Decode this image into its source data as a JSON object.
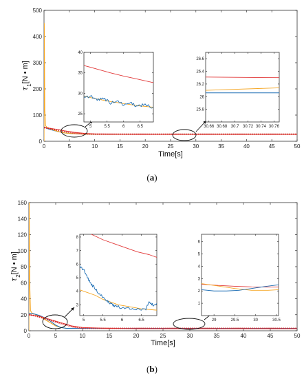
{
  "colors": {
    "blue": "#1f6fb5",
    "orange": "#f5a623",
    "red": "#e23a3a",
    "red_dotted": "#d42020",
    "axis": "#333333"
  },
  "chart_data": [
    {
      "id": "a",
      "type": "line",
      "panel_label": "(a)",
      "panel_letter": "a",
      "xlabel": "Time[s]",
      "ylabel_sym": "τ",
      "ylabel_sub": "1",
      "ylabel_unit": "[N • m]",
      "xlim": [
        0,
        50
      ],
      "ylim": [
        0,
        500
      ],
      "xticks": [
        0,
        5,
        10,
        15,
        20,
        25,
        30,
        35,
        40,
        45,
        50
      ],
      "yticks": [
        0,
        100,
        200,
        300,
        400,
        500
      ],
      "series": [
        {
          "color": "blue",
          "style": "solid",
          "x": [
            0,
            0.5,
            1,
            2,
            3,
            4,
            5,
            6,
            7,
            8,
            10,
            15,
            20,
            25,
            30,
            35,
            40,
            45,
            50
          ],
          "y": [
            55,
            50,
            46,
            41,
            36,
            32,
            30,
            29,
            28,
            27,
            27,
            27,
            27,
            27,
            27,
            27,
            27,
            27,
            27
          ]
        },
        {
          "color": "orange",
          "style": "solid",
          "x": [
            0,
            0.05,
            0.15,
            0.3,
            0.6,
            1,
            2,
            3,
            4,
            5,
            6,
            7,
            8,
            10,
            15,
            20,
            25,
            30,
            35,
            40,
            45,
            50
          ],
          "y": [
            0,
            450,
            120,
            60,
            53,
            49,
            42,
            36,
            32,
            30,
            29,
            28,
            27,
            27,
            27,
            27,
            27,
            27,
            27,
            27,
            27,
            27
          ]
        },
        {
          "color": "red",
          "style": "solid",
          "x": [
            0,
            1,
            2,
            3,
            4,
            5,
            6,
            7,
            8,
            10,
            15,
            20,
            25,
            30,
            35,
            40,
            45,
            50
          ],
          "y": [
            52,
            50,
            47,
            44,
            40,
            37,
            34,
            32,
            30,
            28,
            27,
            26.5,
            26.3,
            26.3,
            26.3,
            26.3,
            26.3,
            26.3
          ]
        },
        {
          "color": "red_dotted",
          "style": "dotted",
          "x": [
            0,
            1,
            2,
            3,
            4,
            5,
            6,
            7,
            8,
            10,
            15,
            20,
            25,
            30,
            35,
            40,
            45,
            50
          ],
          "y": [
            52,
            49,
            45,
            41,
            37,
            34,
            31,
            29,
            28,
            27,
            27,
            27,
            27,
            27,
            27,
            27,
            27,
            27
          ]
        }
      ],
      "insets": [
        {
          "xlim": [
            4.8,
            6.9
          ],
          "ylim": [
            23,
            40
          ],
          "xticks": [
            5,
            5.5,
            6,
            6.5
          ],
          "yticks": [
            25,
            30,
            35,
            40
          ],
          "series": [
            {
              "color": "red",
              "style": "solid",
              "x": [
                4.8,
                5.2,
                5.6,
                6.0,
                6.4,
                6.9
              ],
              "y": [
                36.8,
                35.9,
                35.0,
                34.2,
                33.5,
                32.6
              ]
            },
            {
              "color": "orange",
              "style": "solid",
              "x": [
                4.8,
                5.2,
                5.6,
                6.0,
                6.4,
                6.9
              ],
              "y": [
                29.3,
                28.6,
                28.0,
                27.5,
                27.0,
                26.6
              ]
            },
            {
              "color": "blue",
              "style": "solid",
              "noisy": true,
              "x": [
                4.8,
                5.0,
                5.2,
                5.4,
                5.6,
                5.8,
                6.0,
                6.2,
                6.4,
                6.6,
                6.9
              ],
              "y": [
                29.0,
                29.3,
                28.4,
                28.8,
                27.6,
                28.2,
                27.2,
                27.8,
                26.8,
                27.2,
                26.6
              ]
            }
          ]
        },
        {
          "xlim": [
            30.655,
            30.768
          ],
          "ylim": [
            25.6,
            26.7
          ],
          "xticks": [
            30.66,
            30.68,
            30.7,
            30.72,
            30.74,
            30.76
          ],
          "yticks": [
            25.8,
            26,
            26.2,
            26.4,
            26.6
          ],
          "series": [
            {
              "color": "red",
              "style": "solid",
              "x": [
                30.655,
                30.768
              ],
              "y": [
                26.31,
                26.3
              ]
            },
            {
              "color": "orange",
              "style": "solid",
              "x": [
                30.655,
                30.768
              ],
              "y": [
                26.1,
                26.14
              ]
            },
            {
              "color": "blue",
              "style": "solid",
              "x": [
                30.655,
                30.768
              ],
              "y": [
                26.06,
                26.06
              ]
            }
          ]
        }
      ]
    },
    {
      "id": "b",
      "type": "line",
      "panel_label": "(b)",
      "panel_letter": "b",
      "xlabel": "Time[s]",
      "ylabel_sym": "τ",
      "ylabel_sub": "2",
      "ylabel_unit": "[N • m]",
      "xlim": [
        0,
        50
      ],
      "ylim": [
        0,
        160
      ],
      "xticks": [
        0,
        5,
        10,
        15,
        20,
        25,
        30,
        35,
        40,
        45,
        50
      ],
      "yticks": [
        0,
        20,
        40,
        60,
        80,
        100,
        120,
        140,
        160
      ],
      "series": [
        {
          "color": "orange",
          "style": "solid",
          "x": [
            0,
            0.05,
            0.15,
            0.3,
            0.6,
            1,
            2,
            3,
            4,
            5,
            6,
            7,
            8,
            10,
            15,
            20,
            25,
            30,
            35,
            40,
            45,
            50
          ],
          "y": [
            0,
            160,
            60,
            25,
            22,
            21,
            18,
            14,
            10,
            6,
            4,
            3,
            3,
            3,
            3,
            3,
            3,
            3,
            3,
            3,
            3,
            3
          ]
        },
        {
          "color": "blue",
          "style": "solid",
          "x": [
            0,
            1,
            2,
            3,
            4,
            5,
            6,
            7,
            8,
            10,
            15,
            20,
            25,
            30,
            35,
            40,
            45,
            50
          ],
          "y": [
            22,
            21,
            19,
            16,
            12,
            7,
            4,
            3,
            3,
            3,
            3,
            3,
            3,
            3,
            3,
            3,
            3,
            3
          ]
        },
        {
          "color": "red",
          "style": "solid",
          "x": [
            0,
            1,
            2,
            3,
            4,
            5,
            6,
            7,
            8,
            10,
            15,
            20,
            25,
            30,
            35,
            40,
            45,
            50
          ],
          "y": [
            20,
            19,
            18,
            16,
            14,
            12,
            10,
            8,
            6,
            4,
            3,
            2.5,
            2.5,
            2.5,
            2.5,
            2.5,
            2.5,
            2.5
          ]
        },
        {
          "color": "red_dotted",
          "style": "dotted",
          "x": [
            0,
            1,
            2,
            3,
            4,
            5,
            6,
            7,
            8,
            10,
            15,
            20,
            25,
            30,
            35,
            40,
            45,
            50
          ],
          "y": [
            20,
            19,
            17,
            15,
            13,
            11,
            9,
            7,
            5,
            3,
            3,
            3,
            3,
            3,
            3,
            3,
            3,
            3
          ]
        }
      ],
      "insets": [
        {
          "xlim": [
            4.9,
            6.9
          ],
          "ylim": [
            2.2,
            8.2
          ],
          "xticks": [
            5,
            5.5,
            6,
            6.5
          ],
          "yticks": [
            3,
            4,
            5,
            6,
            7,
            8
          ],
          "series": [
            {
              "color": "red",
              "style": "solid",
              "x": [
                4.9,
                5.2,
                5.5,
                5.8,
                6.1,
                6.4,
                6.7,
                6.9
              ],
              "y": [
                8.7,
                8.2,
                7.8,
                7.5,
                7.2,
                6.9,
                6.7,
                6.5
              ]
            },
            {
              "color": "orange",
              "style": "solid",
              "x": [
                4.9,
                5.1,
                5.3,
                5.5,
                5.7,
                5.9,
                6.1,
                6.3,
                6.5,
                6.9
              ],
              "y": [
                4.1,
                3.9,
                3.7,
                3.4,
                3.2,
                3.0,
                2.9,
                2.8,
                2.7,
                2.6
              ]
            },
            {
              "color": "blue",
              "style": "solid",
              "noisy": true,
              "x": [
                4.9,
                5.0,
                5.1,
                5.2,
                5.3,
                5.4,
                5.5,
                5.6,
                5.7,
                5.8,
                6.0,
                6.2,
                6.4,
                6.6,
                6.7,
                6.8,
                6.9
              ],
              "y": [
                5.8,
                5.6,
                5.0,
                4.5,
                4.2,
                3.8,
                3.6,
                3.3,
                3.1,
                2.9,
                2.8,
                2.7,
                2.7,
                2.6,
                3.2,
                3.0,
                3.1
              ]
            }
          ]
        },
        {
          "xlim": [
            28.7,
            30.55
          ],
          "ylim": [
            0,
            6.6
          ],
          "xticks": [
            29,
            29.5,
            30,
            30.5
          ],
          "yticks": [
            1,
            2,
            3,
            4,
            5,
            6
          ],
          "series": [
            {
              "color": "red",
              "style": "solid",
              "x": [
                28.7,
                29.1,
                29.5,
                29.9,
                30.3,
                30.55
              ],
              "y": [
                2.55,
                2.45,
                2.38,
                2.33,
                2.32,
                2.32
              ]
            },
            {
              "color": "orange",
              "style": "solid",
              "x": [
                28.7,
                29.1,
                29.5,
                29.9,
                30.3,
                30.55
              ],
              "y": [
                2.6,
                2.4,
                2.2,
                2.05,
                2.05,
                2.1
              ]
            },
            {
              "color": "blue",
              "style": "solid",
              "x": [
                28.7,
                29.0,
                29.3,
                29.6,
                29.9,
                30.2,
                30.55
              ],
              "y": [
                2.1,
                2.0,
                2.0,
                2.05,
                2.2,
                2.35,
                2.5
              ]
            }
          ]
        }
      ]
    }
  ]
}
